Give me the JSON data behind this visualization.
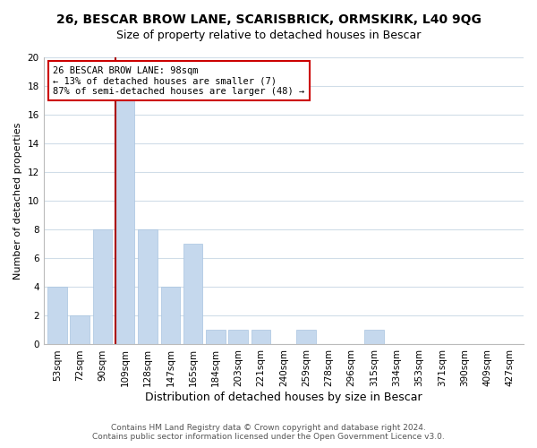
{
  "title": "26, BESCAR BROW LANE, SCARISBRICK, ORMSKIRK, L40 9QG",
  "subtitle": "Size of property relative to detached houses in Bescar",
  "xlabel": "Distribution of detached houses by size in Bescar",
  "ylabel": "Number of detached properties",
  "bar_labels": [
    "53sqm",
    "72sqm",
    "90sqm",
    "109sqm",
    "128sqm",
    "147sqm",
    "165sqm",
    "184sqm",
    "203sqm",
    "221sqm",
    "240sqm",
    "259sqm",
    "278sqm",
    "296sqm",
    "315sqm",
    "334sqm",
    "353sqm",
    "371sqm",
    "390sqm",
    "409sqm",
    "427sqm"
  ],
  "bar_values": [
    4,
    2,
    8,
    17,
    8,
    4,
    7,
    1,
    1,
    1,
    0,
    1,
    0,
    0,
    1,
    0,
    0,
    0,
    0,
    0,
    0
  ],
  "bar_color": "#c5d8ed",
  "bar_edge_color": "#a8c4e0",
  "vline_x": 2.575,
  "annotation_title": "26 BESCAR BROW LANE: 98sqm",
  "annotation_line1": "← 13% of detached houses are smaller (7)",
  "annotation_line2": "87% of semi-detached houses are larger (48) →",
  "annotation_box_color": "#ffffff",
  "annotation_box_edge": "#cc0000",
  "vline_color": "#aa0000",
  "ylim": [
    0,
    20
  ],
  "yticks": [
    0,
    2,
    4,
    6,
    8,
    10,
    12,
    14,
    16,
    18,
    20
  ],
  "footer_line1": "Contains HM Land Registry data © Crown copyright and database right 2024.",
  "footer_line2": "Contains public sector information licensed under the Open Government Licence v3.0.",
  "grid_color": "#d0dde8",
  "background_color": "#ffffff",
  "title_fontsize": 10,
  "subtitle_fontsize": 9,
  "xlabel_fontsize": 9,
  "ylabel_fontsize": 8,
  "tick_fontsize": 7.5,
  "annotation_fontsize": 7.5,
  "footer_fontsize": 6.5
}
